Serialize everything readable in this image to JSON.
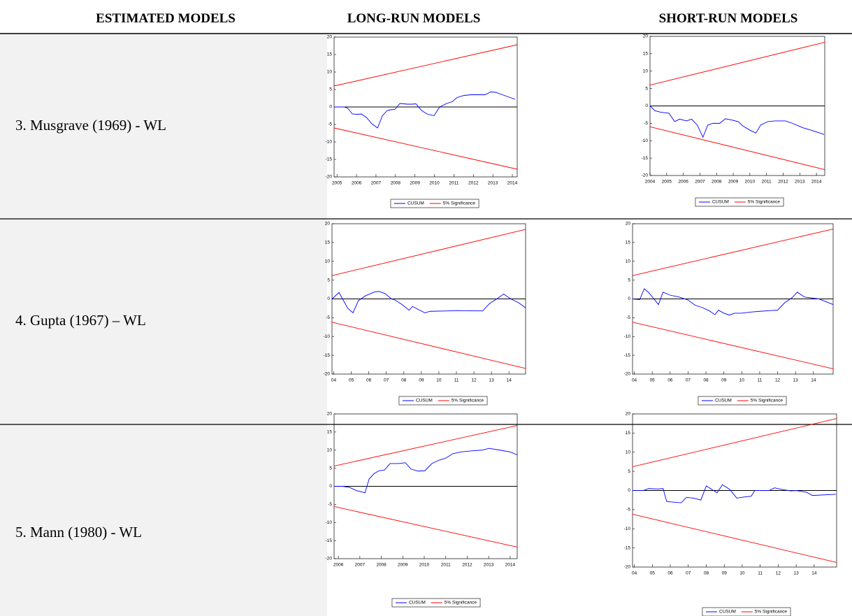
{
  "table": {
    "headers": [
      "ESTIMATED MODELS",
      "LONG-RUN MODELS",
      "SHORT-RUN MODELS"
    ],
    "rows": [
      {
        "model": "3. Musgrave (1969) - WL"
      },
      {
        "model": "4. Gupta (1967) – WL"
      },
      {
        "model": "5. Mann (1980) - WL"
      }
    ]
  },
  "chart_data": [
    {
      "type": "line",
      "xlim": [
        2004.85,
        2014.25
      ],
      "xticks": [
        2005,
        2006,
        2007,
        2008,
        2009,
        2010,
        2011,
        2012,
        2013,
        2014
      ],
      "ylim": [
        -20,
        20
      ],
      "yticks": [
        20,
        15,
        10,
        5,
        0,
        -5,
        -10,
        -15,
        -20
      ],
      "series": [
        {
          "name": "CUSUM",
          "color": "#0000ff",
          "x": [
            2004.85,
            2005.36,
            2005.54,
            2005.79,
            2006.04,
            2006.25,
            2006.51,
            2006.79,
            2007.08,
            2007.33,
            2007.58,
            2007.76,
            2007.97,
            2008.23,
            2008.62,
            2008.84,
            2009.05,
            2009.34,
            2009.62,
            2009.98,
            2010.27,
            2010.63,
            2010.91,
            2011.16,
            2011.52,
            2011.88,
            2012.6,
            2012.89,
            2013.14,
            2013.49,
            2014.14
          ],
          "values": [
            0,
            0,
            -0.3,
            -2,
            -2.1,
            -2,
            -3,
            -4.8,
            -6,
            -2.5,
            -1,
            -0.8,
            -0.7,
            1,
            0.8,
            0.8,
            0.9,
            -1,
            -2,
            -2.5,
            0,
            1,
            1.5,
            2.7,
            3.3,
            3.5,
            3.5,
            4.3,
            4.2,
            3.5,
            2.2
          ]
        },
        {
          "name": "5% Significance",
          "color": "#ff0000",
          "x": [
            2004.85,
            2014.25
          ],
          "values": [
            6,
            17.8
          ]
        },
        {
          "color": "#ff0000",
          "x": [
            2004.85,
            2014.25
          ],
          "values": [
            -6,
            -17.8
          ]
        }
      ]
    },
    {
      "type": "line",
      "xlim": [
        2004,
        2014.5
      ],
      "xticks": [
        2004,
        2005,
        2006,
        2007,
        2008,
        2009,
        2010,
        2011,
        2012,
        2013,
        2014
      ],
      "ylim": [
        -20,
        20
      ],
      "yticks": [
        20,
        15,
        10,
        5,
        0,
        -5,
        -10,
        -15,
        -20
      ],
      "series": [
        {
          "name": "CUSUM",
          "color": "#0000ff",
          "x": [
            2004,
            2004.3,
            2004.64,
            2005.14,
            2005.48,
            2005.78,
            2006.2,
            2006.5,
            2006.84,
            2007.18,
            2007.47,
            2007.77,
            2008.19,
            2008.53,
            2008.87,
            2009.3,
            2009.59,
            2010.02,
            2010.36,
            2010.65,
            2011.08,
            2011.5,
            2012.14,
            2012.56,
            2013.2,
            2013.7,
            2014.46
          ],
          "values": [
            0,
            -1.4,
            -1.8,
            -2.1,
            -4.5,
            -3.8,
            -4.3,
            -3.8,
            -5.5,
            -9,
            -5.5,
            -5,
            -5,
            -3.7,
            -4,
            -4.5,
            -5.8,
            -7,
            -7.8,
            -5.5,
            -4.5,
            -4.3,
            -4.3,
            -5,
            -6.3,
            -7,
            -8.2
          ]
        },
        {
          "name": "5% Significance",
          "color": "#ff0000",
          "x": [
            2004,
            2014.5
          ],
          "values": [
            6,
            18.3
          ]
        },
        {
          "color": "#ff0000",
          "x": [
            2004,
            2014.5
          ],
          "values": [
            -6,
            -18.3
          ]
        }
      ]
    },
    {
      "type": "line",
      "xlim": [
        2003.9,
        2014.95
      ],
      "xticks": [
        {
          "value": 2004,
          "label": "04"
        },
        {
          "value": 2005,
          "label": "05"
        },
        {
          "value": 2006,
          "label": "06"
        },
        {
          "value": 2007,
          "label": "07"
        },
        {
          "value": 2008,
          "label": "08"
        },
        {
          "value": 2009,
          "label": "09"
        },
        {
          "value": 2010,
          "label": "10"
        },
        {
          "value": 2011,
          "label": "11"
        },
        {
          "value": 2012,
          "label": "12"
        },
        {
          "value": 2013,
          "label": "13"
        },
        {
          "value": 2014,
          "label": "14"
        }
      ],
      "ylim": [
        -20,
        20
      ],
      "yticks": [
        20,
        15,
        10,
        5,
        0,
        -5,
        -10,
        -15,
        -20
      ],
      "series": [
        {
          "name": "CUSUM",
          "color": "#0000ff",
          "x": [
            2003.9,
            2004.3,
            2004.8,
            2005.1,
            2005.4,
            2005.8,
            2006.3,
            2006.55,
            2006.9,
            2007.3,
            2007.5,
            2007.9,
            2008.3,
            2008.5,
            2008.9,
            2009.2,
            2009.5,
            2010.5,
            2011,
            2012.5,
            2012.9,
            2013.4,
            2013.7,
            2014.1,
            2014.55,
            2014.95
          ],
          "values": [
            0,
            1.7,
            -2.5,
            -3.7,
            -0.5,
            0.8,
            1.8,
            2,
            1.5,
            0,
            -0.3,
            -1.5,
            -3,
            -2,
            -3,
            -3.7,
            -3.3,
            -3.2,
            -3.1,
            -3.2,
            -1.2,
            0.3,
            1.3,
            0,
            -1,
            -2.4
          ]
        },
        {
          "name": "5% Significance",
          "color": "#ff0000",
          "x": [
            2003.9,
            2014.95
          ],
          "values": [
            6.2,
            18.5
          ]
        },
        {
          "color": "#ff0000",
          "x": [
            2003.9,
            2014.95
          ],
          "values": [
            -6.2,
            -18.5
          ]
        }
      ]
    },
    {
      "type": "line",
      "xlim": [
        2003.9,
        2015.1
      ],
      "xticks": [
        {
          "value": 2004,
          "label": "04"
        },
        {
          "value": 2005,
          "label": "05"
        },
        {
          "value": 2006,
          "label": "06"
        },
        {
          "value": 2007,
          "label": "07"
        },
        {
          "value": 2008,
          "label": "08"
        },
        {
          "value": 2009,
          "label": "09"
        },
        {
          "value": 2010,
          "label": "10"
        },
        {
          "value": 2011,
          "label": "11"
        },
        {
          "value": 2012,
          "label": "12"
        },
        {
          "value": 2013,
          "label": "13"
        },
        {
          "value": 2014,
          "label": "14"
        }
      ],
      "ylim": [
        -20,
        20
      ],
      "yticks": [
        20,
        15,
        10,
        5,
        0,
        -5,
        -10,
        -15,
        -20
      ],
      "series": [
        {
          "name": "CUSUM",
          "color": "#0000ff",
          "x": [
            2003.9,
            2004.3,
            2004.55,
            2004.8,
            2005.35,
            2005.6,
            2006,
            2006.5,
            2007,
            2007.4,
            2007.8,
            2008.2,
            2008.5,
            2008.7,
            2009,
            2009.3,
            2009.6,
            2010,
            2010.5,
            2011,
            2011.6,
            2012,
            2012.4,
            2012.8,
            2013.1,
            2013.5,
            2014.3,
            2015.1
          ],
          "values": [
            0,
            -0.2,
            2.7,
            1.7,
            -1.5,
            1.8,
            1,
            0.5,
            -0.3,
            -1.7,
            -2.3,
            -3.2,
            -4.2,
            -3,
            -3.8,
            -4.3,
            -3.8,
            -3.8,
            -3.5,
            -3.3,
            -3.1,
            -3,
            -1,
            0.3,
            1.8,
            0.5,
            0,
            -1.5
          ]
        },
        {
          "name": "5% Significance",
          "color": "#ff0000",
          "x": [
            2003.9,
            2015.1
          ],
          "values": [
            6.2,
            18.6
          ]
        },
        {
          "color": "#ff0000",
          "x": [
            2003.9,
            2015.1
          ],
          "values": [
            -6.2,
            -18.6
          ]
        }
      ]
    },
    {
      "type": "line",
      "xlim": [
        2005.8,
        2014.33
      ],
      "xticks": [
        2006,
        2007,
        2008,
        2009,
        2010,
        2011,
        2012,
        2013,
        2014
      ],
      "ylim": [
        -20,
        20
      ],
      "yticks": [
        20,
        15,
        10,
        5,
        0,
        -5,
        -10,
        -15,
        -20
      ],
      "series": [
        {
          "name": "CUSUM",
          "color": "#0000ff",
          "x": [
            2005.8,
            2006.2,
            2006.52,
            2006.85,
            2007.24,
            2007.43,
            2007.66,
            2007.89,
            2008.15,
            2008.41,
            2008.8,
            2009.12,
            2009.38,
            2009.71,
            2010.03,
            2010.36,
            2010.68,
            2011.01,
            2011.33,
            2011.72,
            2012.21,
            2012.7,
            2013.02,
            2013.51,
            2014,
            2014.33
          ],
          "values": [
            0,
            0,
            -0.3,
            -1.2,
            -1.8,
            2,
            3.5,
            4.3,
            4.5,
            6.3,
            6.3,
            6.5,
            4.8,
            4.2,
            4.3,
            6.3,
            7.2,
            7.8,
            9,
            9.5,
            9.8,
            10,
            10.5,
            10,
            9.5,
            8.7
          ]
        },
        {
          "name": "5% Significance",
          "color": "#ff0000",
          "x": [
            2005.8,
            2014.33
          ],
          "values": [
            5.6,
            16.8
          ]
        },
        {
          "color": "#ff0000",
          "x": [
            2005.8,
            2014.33
          ],
          "values": [
            -5.6,
            -16.8
          ]
        }
      ]
    },
    {
      "type": "line",
      "xlim": [
        2003.9,
        2015.25
      ],
      "xticks": [
        {
          "value": 2004,
          "label": "04"
        },
        {
          "value": 2005,
          "label": "05"
        },
        {
          "value": 2006,
          "label": "06"
        },
        {
          "value": 2007,
          "label": "07"
        },
        {
          "value": 2008,
          "label": "08"
        },
        {
          "value": 2009,
          "label": "09"
        },
        {
          "value": 2010,
          "label": "10"
        },
        {
          "value": 2011,
          "label": "11"
        },
        {
          "value": 2012,
          "label": "12"
        },
        {
          "value": 2013,
          "label": "13"
        },
        {
          "value": 2014,
          "label": "14"
        }
      ],
      "ylim": [
        -20,
        20
      ],
      "yticks": [
        20,
        15,
        10,
        5,
        0,
        -5,
        -10,
        -15,
        -20
      ],
      "series": [
        {
          "name": "CUSUM",
          "color": "#0000ff",
          "x": [
            2003.9,
            2004.5,
            2004.8,
            2005.3,
            2005.6,
            2005.8,
            2006.3,
            2006.6,
            2006.9,
            2007.3,
            2007.7,
            2008,
            2008.6,
            2008.9,
            2009.3,
            2009.7,
            2010.1,
            2010.5,
            2010.7,
            2011.5,
            2011.8,
            2012.3,
            2012.7,
            2013,
            2013.6,
            2013.9,
            2015.2
          ],
          "values": [
            0,
            0,
            0.5,
            0.4,
            0.5,
            -2.9,
            -3.1,
            -3.2,
            -1.8,
            -2,
            -2.5,
            1.2,
            -0.6,
            1.5,
            0.3,
            -2,
            -1.7,
            -1.5,
            0,
            0,
            0.7,
            0.2,
            -0.1,
            0,
            -0.5,
            -1.3,
            -1
          ]
        },
        {
          "name": "5% Significance",
          "color": "#ff0000",
          "x": [
            2003.9,
            2015.25
          ],
          "values": [
            6.2,
            18.8
          ]
        },
        {
          "color": "#ff0000",
          "x": [
            2003.9,
            2015.25
          ],
          "values": [
            -6.2,
            -18.8
          ]
        }
      ]
    }
  ]
}
